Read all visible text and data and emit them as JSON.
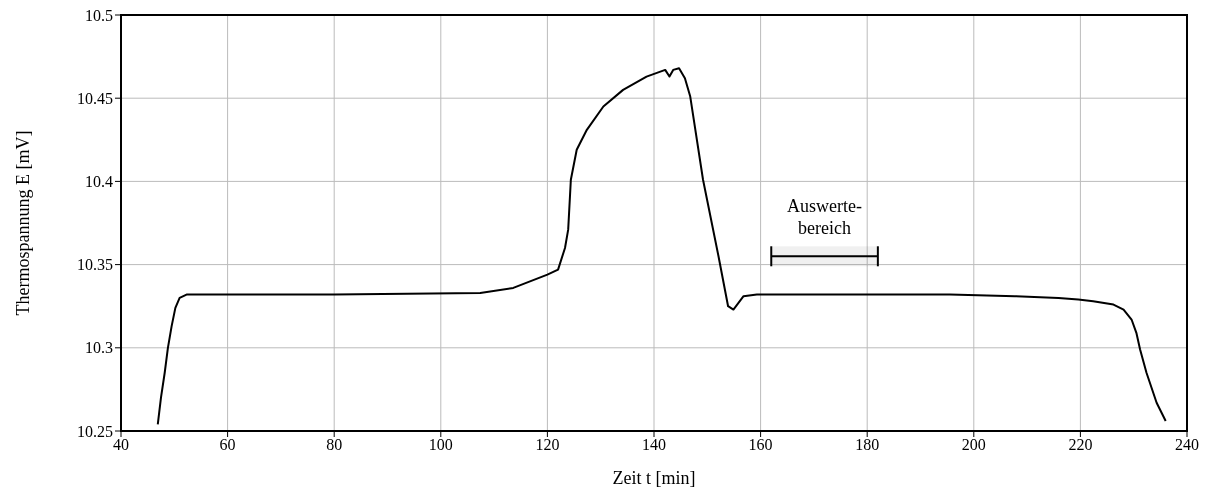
{
  "chart_data": {
    "type": "line",
    "xlabel": "Zeit t [min]",
    "ylabel": "Thermospannung E [mV]",
    "xlim": [
      40,
      240
    ],
    "xticks": [
      40,
      60,
      80,
      100,
      120,
      140,
      160,
      180,
      200,
      220,
      240
    ],
    "ylim": [
      10.25,
      10.5
    ],
    "yticks": [
      10.25,
      10.3,
      10.35,
      10.4,
      10.45,
      10.5
    ],
    "grid": true,
    "marker": "none",
    "line_style": "solid",
    "bands": [
      {
        "axis": "x",
        "from": 162,
        "to": 182,
        "label": "Auswerte-\nbereich"
      }
    ],
    "series": [
      {
        "color": "#000000",
        "x": [
          46.9,
          47.5,
          48.2,
          48.8,
          49.5,
          50.2,
          51,
          52.3,
          80,
          107.4,
          113.6,
          120,
          122,
          123.3,
          123.9,
          124.4,
          125.5,
          127.4,
          130.5,
          134.2,
          138.6,
          142.1,
          142.9,
          143.6,
          144.7,
          145.8,
          146.8,
          149.2,
          152.1,
          153.9,
          154.9,
          156.8,
          159.3,
          180,
          195.5,
          207.7,
          215.9,
          219.6,
          222.4,
          226.2,
          228.1,
          229.6,
          230.5,
          231.2,
          232.4,
          234.3,
          236
        ],
        "values": [
          10.254,
          10.27,
          10.285,
          10.3,
          10.313,
          10.324,
          10.33,
          10.332,
          10.332,
          10.333,
          10.336,
          10.344,
          10.347,
          10.36,
          10.371,
          10.401,
          10.419,
          10.431,
          10.445,
          10.455,
          10.463,
          10.467,
          10.463,
          10.467,
          10.468,
          10.462,
          10.451,
          10.401,
          10.355,
          10.325,
          10.323,
          10.331,
          10.332,
          10.332,
          10.332,
          10.331,
          10.33,
          10.329,
          10.328,
          10.326,
          10.323,
          10.317,
          10.309,
          10.299,
          10.285,
          10.267,
          10.256
        ]
      }
    ]
  }
}
